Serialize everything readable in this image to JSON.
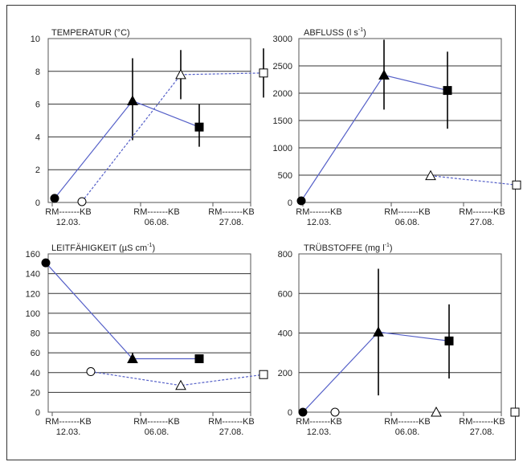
{
  "chart_data": [
    {
      "type": "line",
      "title": "TEMPERATUR (°C)",
      "ylim": [
        0,
        10
      ],
      "yticks": [
        0,
        2,
        4,
        6,
        8,
        10
      ],
      "x_tick_labels": [
        "RM-------KB",
        "RM-------KB",
        "RM-------KB"
      ],
      "x_group_labels": [
        "12.03.",
        "06.08.",
        "27.08."
      ],
      "series": [
        {
          "values": [
            0.25,
            6.2,
            4.6
          ],
          "marker_fill": "black",
          "line": "solid",
          "error_low": [
            null,
            3.8,
            3.4
          ],
          "error_high": [
            null,
            8.8,
            6.0
          ]
        },
        {
          "values": [
            0.05,
            7.8,
            7.9
          ],
          "marker_fill": "white",
          "line": "dotted",
          "error_low": [
            null,
            6.3,
            6.4
          ],
          "error_high": [
            null,
            9.3,
            9.4
          ]
        }
      ]
    },
    {
      "type": "line",
      "title": "ABFLUSS (l s-1)",
      "title_main": "ABFLUSS (l s",
      "title_sup": "-1",
      "title_end": ")",
      "ylim": [
        0,
        3000
      ],
      "yticks": [
        0,
        500,
        1000,
        1500,
        2000,
        2500,
        3000
      ],
      "x_tick_labels": [
        "RM-------KB",
        "RM-------KB",
        "RM-------KB"
      ],
      "x_group_labels": [
        "12.03.",
        "06.08.",
        "27.08."
      ],
      "series": [
        {
          "values": [
            30,
            2330,
            2050
          ],
          "marker_fill": "black",
          "line": "solid",
          "error_low": [
            null,
            1700,
            1350
          ],
          "error_high": [
            null,
            2980,
            2760
          ]
        },
        {
          "values": [
            null,
            490,
            320
          ],
          "marker_fill": "white",
          "line": "dotted",
          "error_low": [
            null,
            null,
            null
          ],
          "error_high": [
            null,
            null,
            null
          ]
        }
      ]
    },
    {
      "type": "line",
      "title": "LEITFÄHIGKEIT (µS cm-1)",
      "title_main": "LEITFÄHIGKEIT (µS cm",
      "title_sup": "-1",
      "title_end": ")",
      "ylim": [
        0,
        160
      ],
      "yticks": [
        0,
        20,
        40,
        60,
        80,
        100,
        120,
        140,
        160
      ],
      "x_tick_labels": [
        "RM-------KB",
        "RM-------KB",
        "RM-------KB"
      ],
      "x_group_labels": [
        "12.03.",
        "06.08.",
        "27.08."
      ],
      "series": [
        {
          "values": [
            151,
            54,
            54
          ],
          "marker_fill": "black",
          "line": "solid",
          "error_low": [
            null,
            50,
            null
          ],
          "error_high": [
            null,
            60,
            null
          ]
        },
        {
          "values": [
            41,
            27,
            38
          ],
          "marker_fill": "white",
          "line": "dotted",
          "error_low": [
            null,
            null,
            null
          ],
          "error_high": [
            null,
            null,
            null
          ]
        }
      ]
    },
    {
      "type": "line",
      "title": "TRÜBSTOFFE (mg l-1)",
      "title_main": "TRÜBSTOFFE (mg l",
      "title_sup": "-1",
      "title_end": ")",
      "ylim": [
        0,
        800
      ],
      "yticks": [
        0,
        200,
        400,
        600,
        800
      ],
      "x_tick_labels": [
        "RM-------KB",
        "RM-------KB",
        "RM-------KB"
      ],
      "x_group_labels": [
        "12.03.",
        "06.08.",
        "27.08."
      ],
      "series": [
        {
          "values": [
            0,
            405,
            360
          ],
          "marker_fill": "black",
          "line": "solid",
          "error_low": [
            null,
            85,
            170
          ],
          "error_high": [
            null,
            725,
            545
          ]
        },
        {
          "values": [
            0,
            0,
            0
          ],
          "marker_fill": "white",
          "line": "none",
          "error_low": [
            null,
            null,
            null
          ],
          "error_high": [
            null,
            null,
            null
          ]
        }
      ]
    }
  ],
  "colors": {
    "connector": "#5560c8",
    "marker": "#000000",
    "grid": "#333333"
  },
  "markers": [
    "circle",
    "triangle",
    "square"
  ]
}
